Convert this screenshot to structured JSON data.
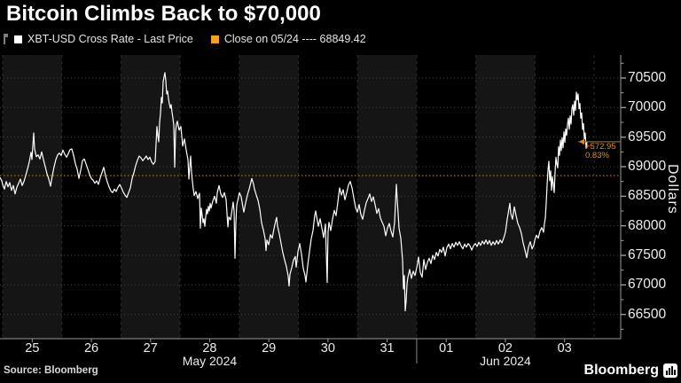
{
  "chart_data": {
    "type": "line",
    "title": "Bitcoin Climbs Back to $70,000",
    "legend": [
      {
        "label": "XBT-USD Cross Rate - Last Price",
        "color": "#ffffff"
      },
      {
        "label": "Close on 05/24 ---- 68849.42",
        "color": "#f7a01e"
      }
    ],
    "ylabel": "Dollars",
    "ylim": [
      66090,
      70890
    ],
    "y_ticks": [
      66500,
      67000,
      67500,
      68000,
      68500,
      69000,
      69500,
      70000,
      70500
    ],
    "y_minor_step": 250,
    "grid": "dotted-horizontal",
    "x_day_labels": [
      "25",
      "26",
      "27",
      "28",
      "29",
      "30",
      "31",
      "01",
      "02",
      "03"
    ],
    "x_month_labels": [
      {
        "label": "May 2024",
        "day_index": 3
      },
      {
        "label": "Jun 2024",
        "day_index": 8
      }
    ],
    "month_break_after_day_index": 6,
    "close_line": {
      "value": 68849.42,
      "color": "#b97a1a"
    },
    "last_price": {
      "value": 69422.37,
      "change": "+572.95",
      "change_pct": "0.83%",
      "line_color": "#8f6018",
      "text_color": "#dd8f1f"
    },
    "series_name": "XBT-USD Cross Rate - Last Price",
    "line_color": "#ffffff",
    "points": [
      [
        0,
        68820
      ],
      [
        2,
        68760
      ],
      [
        3,
        68700
      ],
      [
        5,
        68620
      ],
      [
        7,
        68750
      ],
      [
        9,
        68660
      ],
      [
        11,
        68730
      ],
      [
        13,
        68600
      ],
      [
        15,
        68680
      ],
      [
        17,
        68540
      ],
      [
        19,
        68650
      ],
      [
        21,
        68720
      ],
      [
        23,
        68790
      ],
      [
        25,
        68680
      ],
      [
        27,
        68750
      ],
      [
        29,
        68850
      ],
      [
        31,
        68960
      ],
      [
        33,
        69080
      ],
      [
        35,
        69245
      ],
      [
        36,
        69120
      ],
      [
        38,
        69570
      ],
      [
        39,
        69300
      ],
      [
        41,
        69170
      ],
      [
        43,
        69200
      ],
      [
        45,
        69130
      ],
      [
        47,
        69250
      ],
      [
        49,
        69120
      ],
      [
        51,
        69000
      ],
      [
        53,
        68880
      ],
      [
        55,
        68790
      ],
      [
        57,
        68670
      ],
      [
        59,
        68850
      ],
      [
        61,
        69000
      ],
      [
        63,
        69120
      ],
      [
        65,
        69200
      ],
      [
        67,
        69230
      ],
      [
        69,
        69190
      ],
      [
        71,
        69280
      ],
      [
        73,
        69210
      ],
      [
        75,
        69160
      ],
      [
        77,
        69220
      ],
      [
        79,
        69290
      ],
      [
        81,
        69300
      ],
      [
        83,
        69190
      ],
      [
        85,
        69050
      ],
      [
        87,
        68960
      ],
      [
        89,
        68800
      ],
      [
        91,
        68940
      ],
      [
        93,
        69100
      ],
      [
        95,
        69130
      ],
      [
        97,
        69050
      ],
      [
        99,
        68960
      ],
      [
        101,
        68870
      ],
      [
        103,
        68800
      ],
      [
        105,
        68770
      ],
      [
        107,
        68720
      ],
      [
        109,
        68760
      ],
      [
        111,
        68700
      ],
      [
        113,
        68810
      ],
      [
        115,
        68900
      ],
      [
        117,
        68990
      ],
      [
        119,
        68850
      ],
      [
        121,
        68740
      ],
      [
        123,
        68660
      ],
      [
        125,
        68590
      ],
      [
        127,
        68560
      ],
      [
        129,
        68620
      ],
      [
        131,
        68580
      ],
      [
        133,
        68650
      ],
      [
        135,
        68700
      ],
      [
        137,
        68640
      ],
      [
        139,
        68570
      ],
      [
        141,
        68520
      ],
      [
        143,
        68480
      ],
      [
        145,
        68560
      ],
      [
        147,
        68640
      ],
      [
        149,
        68800
      ],
      [
        151,
        68900
      ],
      [
        153,
        69020
      ],
      [
        155,
        69110
      ],
      [
        157,
        69180
      ],
      [
        159,
        69150
      ],
      [
        161,
        69100
      ],
      [
        163,
        69140
      ],
      [
        165,
        69180
      ],
      [
        167,
        69120
      ],
      [
        169,
        69160
      ],
      [
        171,
        69080
      ],
      [
        173,
        69040
      ],
      [
        175,
        69090
      ],
      [
        177,
        69680
      ],
      [
        178,
        69520
      ],
      [
        179,
        69420
      ],
      [
        180,
        69750
      ],
      [
        181,
        69900
      ],
      [
        182,
        70170
      ],
      [
        183,
        70080
      ],
      [
        184,
        70440
      ],
      [
        185,
        70520
      ],
      [
        186,
        70590
      ],
      [
        187,
        70450
      ],
      [
        188,
        70230
      ],
      [
        189,
        70280
      ],
      [
        190,
        70150
      ],
      [
        191,
        70060
      ],
      [
        192,
        69990
      ],
      [
        193,
        70050
      ],
      [
        194,
        69920
      ],
      [
        195,
        69820
      ],
      [
        196,
        69700
      ],
      [
        197,
        68990
      ],
      [
        198,
        69600
      ],
      [
        199,
        69720
      ],
      [
        200,
        69770
      ],
      [
        202,
        69620
      ],
      [
        204,
        69680
      ],
      [
        206,
        69350
      ],
      [
        208,
        69470
      ],
      [
        210,
        69280
      ],
      [
        212,
        69120
      ],
      [
        213,
        68790
      ],
      [
        214,
        69000
      ],
      [
        215,
        69180
      ],
      [
        216,
        68900
      ],
      [
        217,
        68750
      ],
      [
        218,
        68620
      ],
      [
        219,
        68510
      ],
      [
        221,
        68580
      ],
      [
        223,
        68460
      ],
      [
        225,
        68550
      ],
      [
        226,
        67960
      ],
      [
        227,
        68300
      ],
      [
        228,
        68180
      ],
      [
        229,
        68050
      ],
      [
        230,
        68120
      ],
      [
        231,
        67990
      ],
      [
        232,
        68150
      ],
      [
        233,
        68280
      ],
      [
        234,
        68200
      ],
      [
        235,
        68330
      ],
      [
        236,
        68250
      ],
      [
        237,
        68380
      ],
      [
        238,
        68300
      ],
      [
        240,
        68420
      ],
      [
        242,
        68500
      ],
      [
        244,
        68380
      ],
      [
        245,
        68560
      ],
      [
        247,
        68680
      ],
      [
        249,
        68540
      ],
      [
        251,
        68480
      ],
      [
        253,
        68560
      ],
      [
        255,
        68440
      ],
      [
        257,
        67980
      ],
      [
        258,
        68150
      ],
      [
        260,
        68100
      ],
      [
        262,
        68300
      ],
      [
        263,
        68400
      ],
      [
        264,
        68250
      ],
      [
        265,
        67450
      ],
      [
        266,
        68050
      ],
      [
        267,
        68350
      ],
      [
        268,
        68420
      ],
      [
        270,
        68560
      ],
      [
        272,
        68490
      ],
      [
        274,
        68310
      ],
      [
        275,
        68230
      ],
      [
        277,
        68390
      ],
      [
        279,
        68520
      ],
      [
        281,
        68620
      ],
      [
        283,
        68740
      ],
      [
        284,
        68800
      ],
      [
        286,
        68700
      ],
      [
        287,
        68620
      ],
      [
        289,
        68520
      ],
      [
        291,
        68430
      ],
      [
        293,
        68280
      ],
      [
        295,
        68050
      ],
      [
        297,
        67930
      ],
      [
        299,
        67780
      ],
      [
        300,
        67580
      ],
      [
        301,
        67760
      ],
      [
        303,
        67680
      ],
      [
        305,
        67850
      ],
      [
        307,
        67790
      ],
      [
        309,
        67950
      ],
      [
        311,
        68090
      ],
      [
        312,
        68140
      ],
      [
        313,
        67990
      ],
      [
        315,
        67860
      ],
      [
        317,
        67700
      ],
      [
        319,
        67540
      ],
      [
        321,
        67420
      ],
      [
        323,
        67310
      ],
      [
        325,
        67150
      ],
      [
        326,
        66980
      ],
      [
        327,
        67180
      ],
      [
        329,
        67290
      ],
      [
        331,
        67420
      ],
      [
        333,
        67480
      ],
      [
        334,
        67300
      ],
      [
        336,
        67560
      ],
      [
        338,
        67700
      ],
      [
        340,
        67520
      ],
      [
        342,
        67280
      ],
      [
        344,
        67160
      ],
      [
        345,
        67050
      ],
      [
        347,
        67330
      ],
      [
        349,
        67560
      ],
      [
        351,
        67780
      ],
      [
        353,
        67920
      ],
      [
        355,
        68180
      ],
      [
        356,
        68250
      ],
      [
        357,
        68160
      ],
      [
        359,
        67990
      ],
      [
        361,
        68120
      ],
      [
        363,
        67960
      ],
      [
        365,
        67800
      ],
      [
        367,
        68030
      ],
      [
        369,
        67040
      ],
      [
        370,
        67900
      ],
      [
        371,
        68060
      ],
      [
        373,
        67920
      ],
      [
        375,
        68110
      ],
      [
        377,
        68260
      ],
      [
        379,
        68170
      ],
      [
        381,
        68400
      ],
      [
        383,
        68640
      ],
      [
        385,
        68520
      ],
      [
        387,
        68610
      ],
      [
        389,
        68440
      ],
      [
        391,
        68560
      ],
      [
        393,
        68690
      ],
      [
        395,
        68750
      ],
      [
        397,
        68640
      ],
      [
        399,
        68470
      ],
      [
        401,
        68310
      ],
      [
        403,
        68230
      ],
      [
        405,
        68360
      ],
      [
        407,
        68190
      ],
      [
        409,
        68110
      ],
      [
        411,
        68260
      ],
      [
        413,
        68390
      ],
      [
        415,
        68460
      ],
      [
        417,
        68540
      ],
      [
        419,
        68410
      ],
      [
        421,
        68490
      ],
      [
        423,
        68360
      ],
      [
        425,
        68210
      ],
      [
        427,
        68290
      ],
      [
        429,
        68130
      ],
      [
        431,
        68060
      ],
      [
        433,
        67990
      ],
      [
        435,
        67830
      ],
      [
        437,
        67960
      ],
      [
        439,
        68040
      ],
      [
        441,
        67910
      ],
      [
        443,
        67810
      ],
      [
        445,
        68060
      ],
      [
        447,
        68700
      ],
      [
        448,
        68440
      ],
      [
        450,
        67960
      ],
      [
        452,
        67790
      ],
      [
        454,
        67420
      ],
      [
        455,
        66930
      ],
      [
        456,
        67160
      ],
      [
        457,
        66560
      ],
      [
        458,
        66720
      ],
      [
        459,
        67010
      ],
      [
        460,
        67130
      ],
      [
        462,
        67260
      ],
      [
        464,
        67110
      ],
      [
        466,
        67230
      ],
      [
        468,
        67160
      ],
      [
        470,
        67290
      ],
      [
        472,
        67470
      ],
      [
        474,
        67210
      ],
      [
        476,
        67130
      ],
      [
        478,
        67430
      ],
      [
        480,
        67260
      ],
      [
        482,
        67380
      ],
      [
        484,
        67450
      ],
      [
        486,
        67360
      ],
      [
        488,
        67500
      ],
      [
        490,
        67430
      ],
      [
        492,
        67550
      ],
      [
        494,
        67490
      ],
      [
        496,
        67600
      ],
      [
        498,
        67550
      ],
      [
        500,
        67640
      ],
      [
        502,
        67490
      ],
      [
        504,
        67630
      ],
      [
        506,
        67690
      ],
      [
        508,
        67610
      ],
      [
        510,
        67700
      ],
      [
        512,
        67640
      ],
      [
        514,
        67720
      ],
      [
        516,
        67670
      ],
      [
        518,
        67730
      ],
      [
        520,
        67660
      ],
      [
        522,
        67610
      ],
      [
        524,
        67690
      ],
      [
        526,
        67640
      ],
      [
        528,
        67700
      ],
      [
        530,
        67660
      ],
      [
        532,
        67590
      ],
      [
        534,
        67660
      ],
      [
        536,
        67700
      ],
      [
        538,
        67650
      ],
      [
        540,
        67720
      ],
      [
        542,
        67670
      ],
      [
        544,
        67740
      ],
      [
        546,
        67690
      ],
      [
        548,
        67760
      ],
      [
        550,
        67690
      ],
      [
        552,
        67750
      ],
      [
        554,
        67670
      ],
      [
        556,
        67730
      ],
      [
        558,
        67680
      ],
      [
        560,
        67750
      ],
      [
        562,
        67690
      ],
      [
        564,
        67760
      ],
      [
        566,
        67710
      ],
      [
        568,
        67790
      ],
      [
        570,
        67890
      ],
      [
        572,
        68110
      ],
      [
        574,
        68290
      ],
      [
        575,
        68380
      ],
      [
        576,
        68210
      ],
      [
        578,
        68110
      ],
      [
        580,
        68320
      ],
      [
        582,
        68170
      ],
      [
        584,
        68040
      ],
      [
        586,
        67970
      ],
      [
        588,
        67870
      ],
      [
        590,
        67710
      ],
      [
        592,
        67590
      ],
      [
        594,
        67460
      ],
      [
        596,
        67640
      ],
      [
        598,
        67730
      ],
      [
        600,
        67610
      ],
      [
        602,
        67670
      ],
      [
        603,
        67750
      ],
      [
        605,
        67840
      ],
      [
        607,
        67790
      ],
      [
        609,
        67910
      ],
      [
        611,
        67970
      ],
      [
        613,
        67890
      ],
      [
        614,
        68040
      ],
      [
        615,
        68130
      ],
      [
        616,
        68390
      ],
      [
        617,
        68690
      ],
      [
        618,
        68940
      ],
      [
        619,
        69090
      ],
      [
        620,
        68760
      ],
      [
        621,
        68930
      ],
      [
        622,
        68600
      ],
      [
        623,
        68830
      ],
      [
        624,
        68700
      ],
      [
        625,
        68560
      ],
      [
        626,
        68910
      ],
      [
        627,
        69160
      ],
      [
        628,
        69040
      ],
      [
        629,
        68980
      ],
      [
        630,
        69340
      ],
      [
        631,
        69190
      ],
      [
        632,
        69450
      ],
      [
        633,
        69270
      ],
      [
        634,
        69490
      ],
      [
        635,
        69320
      ],
      [
        636,
        69590
      ],
      [
        637,
        69410
      ],
      [
        638,
        69640
      ],
      [
        639,
        69530
      ],
      [
        640,
        69710
      ],
      [
        641,
        69820
      ],
      [
        642,
        69630
      ],
      [
        643,
        69860
      ],
      [
        644,
        69720
      ],
      [
        645,
        69980
      ],
      [
        646,
        70050
      ],
      [
        647,
        69870
      ],
      [
        648,
        70110
      ],
      [
        649,
        69950
      ],
      [
        650,
        70260
      ],
      [
        651,
        70130
      ],
      [
        652,
        70230
      ],
      [
        653,
        69980
      ],
      [
        654,
        70070
      ],
      [
        655,
        69820
      ],
      [
        656,
        69910
      ],
      [
        657,
        69630
      ],
      [
        658,
        69730
      ],
      [
        659,
        69470
      ],
      [
        660,
        69570
      ],
      [
        661,
        69310
      ],
      [
        662,
        69422.37
      ]
    ]
  },
  "footer": {
    "source": "Source: Bloomberg",
    "brand": "Bloomberg"
  },
  "colors": {
    "background": "#000000",
    "band_light": "#151515",
    "grid": "#424242",
    "axis": "#9a9a9a",
    "accent_orange": "#f7a01e"
  }
}
